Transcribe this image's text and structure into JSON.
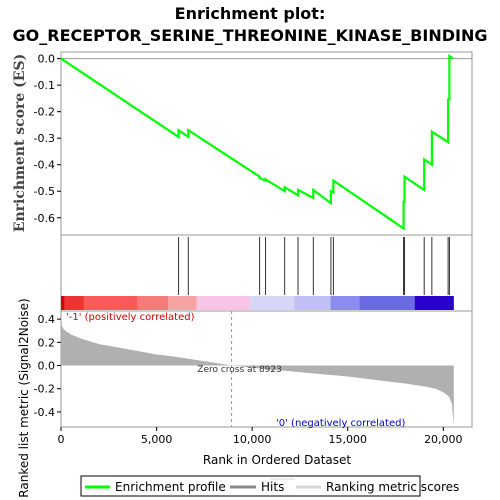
{
  "chart_data": {
    "type": "line",
    "title_lines": [
      "Enrichment plot:",
      "GO_RECEPTOR_SERINE_THREONINE_KINASE_BINDING"
    ],
    "enrichment_panel": {
      "ylabel": "Enrichment score (ES)",
      "ylim": [
        -0.665,
        0.025
      ],
      "yticks": [
        "0.0",
        "-0.1",
        "-0.2",
        "-0.3",
        "-0.4",
        "-0.5",
        "-0.6"
      ],
      "ytick_values": [
        0.0,
        -0.1,
        -0.2,
        -0.3,
        -0.4,
        -0.5,
        -0.6
      ],
      "series_color": "#00ff00",
      "points": [
        [
          0,
          0.0
        ],
        [
          6150,
          -0.295
        ],
        [
          6150,
          -0.27
        ],
        [
          6660,
          -0.295
        ],
        [
          6660,
          -0.27
        ],
        [
          10390,
          -0.445
        ],
        [
          10390,
          -0.45
        ],
        [
          10700,
          -0.46
        ],
        [
          10700,
          -0.455
        ],
        [
          11700,
          -0.5
        ],
        [
          11700,
          -0.485
        ],
        [
          12400,
          -0.515
        ],
        [
          12400,
          -0.495
        ],
        [
          13200,
          -0.525
        ],
        [
          13200,
          -0.495
        ],
        [
          14120,
          -0.545
        ],
        [
          14120,
          -0.5
        ],
        [
          14250,
          -0.505
        ],
        [
          14250,
          -0.46
        ],
        [
          17920,
          -0.64
        ],
        [
          17920,
          -0.54
        ],
        [
          17970,
          -0.54
        ],
        [
          17970,
          -0.445
        ],
        [
          19000,
          -0.495
        ],
        [
          19000,
          -0.38
        ],
        [
          19400,
          -0.4
        ],
        [
          19400,
          -0.275
        ],
        [
          20250,
          -0.315
        ],
        [
          20250,
          -0.155
        ],
        [
          20320,
          -0.155
        ],
        [
          20320,
          0.01
        ],
        [
          20500,
          0.0
        ]
      ]
    },
    "hits": [
      6150,
      6660,
      10390,
      10700,
      11700,
      12400,
      13200,
      14120,
      14250,
      17920,
      17970,
      19000,
      19400,
      20250,
      20320
    ],
    "colorbar": {
      "segments": [
        {
          "from": 0,
          "to": 200,
          "color": "#dd0000"
        },
        {
          "from": 200,
          "to": 1200,
          "color": "#ee3333"
        },
        {
          "from": 1200,
          "to": 4000,
          "color": "#f85a5a"
        },
        {
          "from": 4000,
          "to": 5600,
          "color": "#f77a7a"
        },
        {
          "from": 5600,
          "to": 7100,
          "color": "#f8a3a3"
        },
        {
          "from": 7100,
          "to": 9900,
          "color": "#f8c4e6"
        },
        {
          "from": 9900,
          "to": 12200,
          "color": "#d6d6f6"
        },
        {
          "from": 12200,
          "to": 14100,
          "color": "#c0c0f4"
        },
        {
          "from": 14100,
          "to": 15600,
          "color": "#8c8cf0"
        },
        {
          "from": 15600,
          "to": 18500,
          "color": "#6a6ae4"
        },
        {
          "from": 18500,
          "to": 20550,
          "color": "#2a00cc"
        }
      ]
    },
    "ranked_panel": {
      "ylabel": "Ranked list metric (Signal2Noise)",
      "xlabel": "Rank in Ordered Dataset",
      "ylim": [
        -0.53,
        0.47
      ],
      "yticks": [
        "0.4",
        "0.2",
        "0.0",
        "-0.2",
        "-0.4"
      ],
      "ytick_values": [
        0.4,
        0.2,
        0.0,
        -0.2,
        -0.4
      ],
      "xticks": [
        "0",
        "5,000",
        "10,000",
        "15,000",
        "20,000"
      ],
      "xtick_values": [
        0,
        5000,
        10000,
        15000,
        20000
      ],
      "xlim": [
        0,
        21500
      ],
      "zero_cross_label": "Zero cross at 8923",
      "zero_cross": 8923,
      "positive_label": "'-1' (positively correlated)",
      "negative_label": "'0' (negatively correlated)",
      "fill_color": "#b0b0b0",
      "profile": [
        [
          0,
          0.36
        ],
        [
          150,
          0.31
        ],
        [
          500,
          0.27
        ],
        [
          1000,
          0.235
        ],
        [
          2000,
          0.185
        ],
        [
          3000,
          0.155
        ],
        [
          4000,
          0.125
        ],
        [
          5000,
          0.095
        ],
        [
          6000,
          0.075
        ],
        [
          7000,
          0.05
        ],
        [
          8000,
          0.025
        ],
        [
          8923,
          0.0
        ],
        [
          10000,
          -0.02
        ],
        [
          11000,
          -0.035
        ],
        [
          12000,
          -0.05
        ],
        [
          13000,
          -0.065
        ],
        [
          14000,
          -0.08
        ],
        [
          15000,
          -0.095
        ],
        [
          16000,
          -0.115
        ],
        [
          17000,
          -0.135
        ],
        [
          18000,
          -0.155
        ],
        [
          19000,
          -0.18
        ],
        [
          19600,
          -0.2
        ],
        [
          20000,
          -0.23
        ],
        [
          20300,
          -0.27
        ],
        [
          20450,
          -0.33
        ],
        [
          20550,
          -0.52
        ]
      ]
    },
    "legend": {
      "entries": [
        {
          "label": "Enrichment profile",
          "color": "#00ff00"
        },
        {
          "label": "Hits",
          "color": "#888888"
        },
        {
          "label": "Ranking metric scores",
          "color": "#d8d8d8"
        }
      ]
    }
  }
}
